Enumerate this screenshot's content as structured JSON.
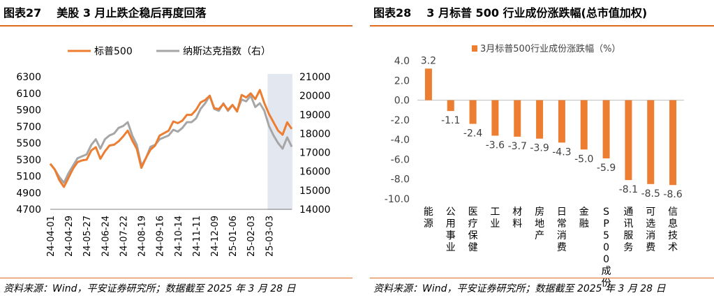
{
  "left": {
    "figure_label": "图表27",
    "title": "美股 3 月止跌企稳后再度回落",
    "source": "资料来源：Wind，平安证券研究所；数据截至 2025 年 3 月 28 日"
  },
  "right": {
    "figure_label": "图表28",
    "title": "3 月标普 500 行业成份涨跌幅(总市值加权)",
    "source": "资料来源：Wind，平安证券研究所；数据截至 2025 年 3 月 28 日"
  },
  "colors": {
    "accent": "#e06b1f",
    "orange_line": "#ed7d31",
    "gray_line": "#a6a6a6",
    "shade": "#e3e7ef"
  },
  "chart_data": [
    {
      "type": "line",
      "title": "美股 3 月止跌企稳后再度回落",
      "legend": [
        "标普500",
        "纳斯达克指数（右）"
      ],
      "x_ticks": [
        "24-04-01",
        "24-04-29",
        "24-05-27",
        "24-06-24",
        "24-07-22",
        "24-08-19",
        "24-09-16",
        "24-10-14",
        "24-11-11",
        "24-12-09",
        "25-01-06",
        "25-02-03",
        "25-03-03"
      ],
      "x_tick_index": [
        0,
        4,
        8,
        12,
        16,
        20,
        24,
        28,
        32,
        36,
        40,
        44,
        48
      ],
      "left_axis": {
        "min": 4700,
        "max": 6300,
        "ticks": [
          "6300",
          "6100",
          "5900",
          "5700",
          "5500",
          "5300",
          "5100",
          "4900",
          "4700"
        ]
      },
      "right_axis": {
        "min": 14000,
        "max": 21000,
        "ticks": [
          "21000",
          "20000",
          "19000",
          "18000",
          "17000",
          "16000",
          "15000",
          "14000"
        ]
      },
      "shaded_from_index": 48,
      "series": [
        {
          "name": "标普500",
          "axis": "left",
          "values": [
            5250,
            5180,
            5050,
            4970,
            5080,
            5190,
            5270,
            5290,
            5300,
            5410,
            5450,
            5310,
            5400,
            5470,
            5480,
            5520,
            5580,
            5650,
            5530,
            5430,
            5200,
            5320,
            5420,
            5470,
            5590,
            5620,
            5650,
            5760,
            5740,
            5770,
            5840,
            5840,
            5900,
            5990,
            6020,
            6070,
            5920,
            5910,
            5970,
            5900,
            5960,
            5880,
            6080,
            6050,
            6100,
            6030,
            6140,
            5980,
            5850,
            5750,
            5650,
            5600,
            5750,
            5670
          ]
        },
        {
          "name": "纳斯达克指数（右）",
          "axis": "right",
          "values": [
            16400,
            16100,
            15700,
            15400,
            15900,
            16300,
            16700,
            16800,
            16900,
            17400,
            17700,
            17200,
            17700,
            17900,
            18000,
            18300,
            18400,
            18600,
            17900,
            17400,
            16300,
            16700,
            17300,
            17400,
            17700,
            17800,
            17900,
            18200,
            18100,
            18300,
            18600,
            18600,
            18800,
            19300,
            19600,
            20000,
            19300,
            19200,
            19600,
            19200,
            19500,
            19200,
            19800,
            19700,
            20000,
            19400,
            19600,
            19200,
            18400,
            17900,
            17500,
            17200,
            17800,
            17300
          ]
        }
      ]
    },
    {
      "type": "bar",
      "title": "3 月标普 500 行业成份涨跌幅(总市值加权)",
      "legend": "3月标普500行业成份涨跌幅（%）",
      "categories": [
        "能源",
        "公用事业",
        "医疗保健",
        "工业",
        "材料",
        "房地产",
        "日常消费",
        "金融",
        "SP500成份",
        "通讯服务",
        "可选消费",
        "信息技术"
      ],
      "values": [
        3.2,
        -1.1,
        -2.4,
        -3.6,
        -3.7,
        -3.9,
        -4.3,
        -5.0,
        -5.9,
        -8.1,
        -8.5,
        -8.6
      ],
      "value_labels": [
        "3.2",
        "-1.1",
        "-2.4",
        "-3.6",
        "-3.7",
        "-3.9",
        "-4.3",
        "-5.0",
        "-5.9",
        "-8.1",
        "-8.5",
        "-8.6"
      ],
      "y_axis": {
        "min": -10,
        "max": 4,
        "ticks": [
          "4.0",
          "2.0",
          "0.0",
          "-2.0",
          "-4.0",
          "-6.0",
          "-8.0",
          "-10.0"
        ]
      }
    }
  ]
}
